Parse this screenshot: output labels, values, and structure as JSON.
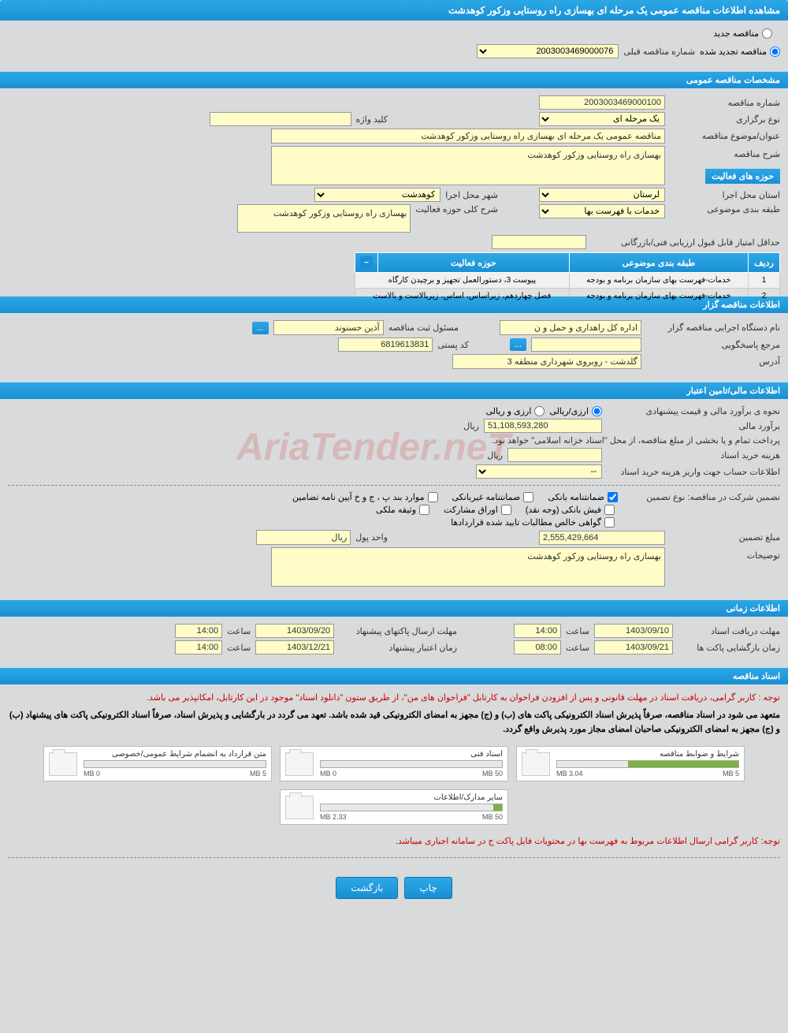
{
  "header": {
    "title": "مشاهده اطلاعات مناقصه عمومی یک مرحله ای بهسازی راه روستایی وزکور کوهدشت"
  },
  "tender_type": {
    "new_label": "مناقصه جدید",
    "renewed_label": "مناقصه تجدید شده",
    "prev_number_label": "شماره مناقصه قبلی",
    "prev_number": "2003003469000076"
  },
  "general": {
    "section_title": "مشخصات مناقصه عمومی",
    "number_label": "شماره مناقصه",
    "number": "2003003469000100",
    "type_label": "نوع برگزاری",
    "type": "یک مرحله ای",
    "keyword_label": "کلید واژه",
    "keyword": "",
    "subject_label": "عنوان/موضوع مناقصه",
    "subject": "مناقصه عمومی یک مرحله ای بهسازی راه روستایی وزکور کوهدشت",
    "description_label": "شرح مناقصه",
    "description": "بهسازی راه روستایی وزکور کوهدشت",
    "province_label": "استان محل اجرا",
    "province": "لرستان",
    "city_label": "شهر محل اجرا",
    "city": "کوهدشت",
    "category_label": "طبقه بندی موضوعی",
    "category": "خدمات با فهرست بها",
    "activity_desc_label": "شرح کلی حوزه فعالیت",
    "activity_desc": "بهسازی راه روستایی وزکور کوهدشت",
    "min_score_label": "حداقل امتیاز قابل قبول ارزیابی فنی/بازرگانی",
    "min_score": ""
  },
  "activity_areas": {
    "title": "حوزه های فعالیت",
    "col_row": "ردیف",
    "col_category": "طبقه بندی موضوعی",
    "col_activity": "حوزه فعالیت",
    "rows": [
      {
        "n": "1",
        "cat": "خدمات-فهرست بهای سازمان برنامه و بودجه",
        "act": "پیوست 3، دستورالعمل تجهیز و برچیدن کارگاه"
      },
      {
        "n": "2",
        "cat": "خدمات-فهرست بهای سازمان برنامه و بودجه",
        "act": "فصل چهاردهم، زیراساس، اساس، زیربالاست و بالاست"
      }
    ]
  },
  "organizer": {
    "section_title": "اطلاعات مناقصه گزار",
    "org_label": "نام دستگاه اجرایی مناقصه گزار",
    "org": "اداره کل راهداری و حمل و ن",
    "responsible_label": "مسئول ثبت مناقصه",
    "responsible": "آذین حسنوند",
    "contact_label": "مرجع پاسخگویی",
    "contact": "",
    "postal_label": "کد پستی",
    "postal": "6819613831",
    "address_label": "آدرس",
    "address": "گلدشت - روبروی شهرداری منطقه 3"
  },
  "financial": {
    "section_title": "اطلاعات مالی/تامین اعتبار",
    "method_label": "نحوه ی برآورد مالی و قیمت پیشنهادی",
    "method_rial": "ارزی/ریالی",
    "method_both": "ارزی و ریالی",
    "estimate_label": "برآورد مالی",
    "estimate": "51,108,593,280",
    "currency": "ریال",
    "payment_note": "پرداخت تمام و یا بخشی از مبلغ مناقصه، از محل \"اسناد خزانه اسلامی\" خواهد بود.",
    "doc_cost_label": "هزینه خرید اسناد",
    "doc_cost": "",
    "doc_cost_unit": "ریال",
    "account_label": "اطلاعات حساب جهت واریز هزینه خرید اسناد",
    "account": "--"
  },
  "guarantee": {
    "type_label": "تضمین شرکت در مناقصه:   نوع تضمین",
    "opt_bank": "ضمانتنامه بانکی",
    "opt_nonbank": "ضمانتنامه غیربانکی",
    "opt_bond": "موارد بند پ ، ج و خ آیین نامه تضامین",
    "opt_cash": "فیش بانکی (وجه نقد)",
    "opt_securities": "اوراق مشارکت",
    "opt_deed": "وثیقه ملکی",
    "opt_cert": "گواهی خالص مطالبات تایید شده قراردادها",
    "amount_label": "مبلغ تضمین",
    "amount": "2,555,429,664",
    "unit_label": "واحد پول",
    "unit": "ریال",
    "notes_label": "توضیحات",
    "notes": "بهسازی راه روستایی وزکور کوهدشت"
  },
  "timing": {
    "section_title": "اطلاعات زمانی",
    "doc_deadline_label": "مهلت دریافت اسناد",
    "doc_deadline_date": "1403/09/10",
    "doc_deadline_time": "14:00",
    "time_label": "ساعت",
    "bid_deadline_label": "مهلت ارسال پاکتهای پیشنهاد",
    "bid_deadline_date": "1403/09/20",
    "bid_deadline_time": "14:00",
    "open_label": "زمان بازگشایی پاکت ها",
    "open_date": "1403/09/21",
    "open_time": "08:00",
    "validity_label": "زمان اعتبار پیشنهاد",
    "validity_date": "1403/12/21",
    "validity_time": "14:00"
  },
  "documents": {
    "section_title": "اسناد مناقصه",
    "notice1": "توجه : کاربر گرامی، دریافت اسناد در مهلت قانونی و پس از افزودن فراخوان به کارتابل \"فراخوان های من\"، از طریق ستون \"دانلود اسناد\" موجود در این کارتابل، امکانپذیر می باشد.",
    "notice2": "متعهد می شود در اسناد مناقصه، صرفاً پذیرش اسناد الکترونیکی پاکت های (ب) و (ج) مجهز به امضای الکترونیکی قید شده باشد. تعهد می گردد در بارگشایی و پذیرش اسناد، صرفاً اسناد الکترونیکی پاکت های پیشنهاد (ب) و (ج) مجهز به امضای الکترونیکی صاحبان امضای مجاز مورد پذیرش واقع گردد.",
    "files": [
      {
        "name": "شرایط و ضوابط مناقصه",
        "used": "3.04 MB",
        "max": "5 MB",
        "pct": 61
      },
      {
        "name": "اسناد فنی",
        "used": "0 MB",
        "max": "50 MB",
        "pct": 0
      },
      {
        "name": "متن قرارداد به انضمام شرایط عمومی/خصوصی",
        "used": "0 MB",
        "max": "5 MB",
        "pct": 0
      },
      {
        "name": "سایر مدارک/اطلاعات",
        "used": "2.33 MB",
        "max": "50 MB",
        "pct": 5
      }
    ],
    "footer_notice": "توجه: کاربر گرامی ارسال اطلاعات مربوط به فهرست بها در محتویات فایل پاکت ج در سامانه اجباری میباشد."
  },
  "buttons": {
    "print": "چاپ",
    "back": "بازگشت",
    "dots": "..."
  },
  "watermark": "AriaTender.neT"
}
